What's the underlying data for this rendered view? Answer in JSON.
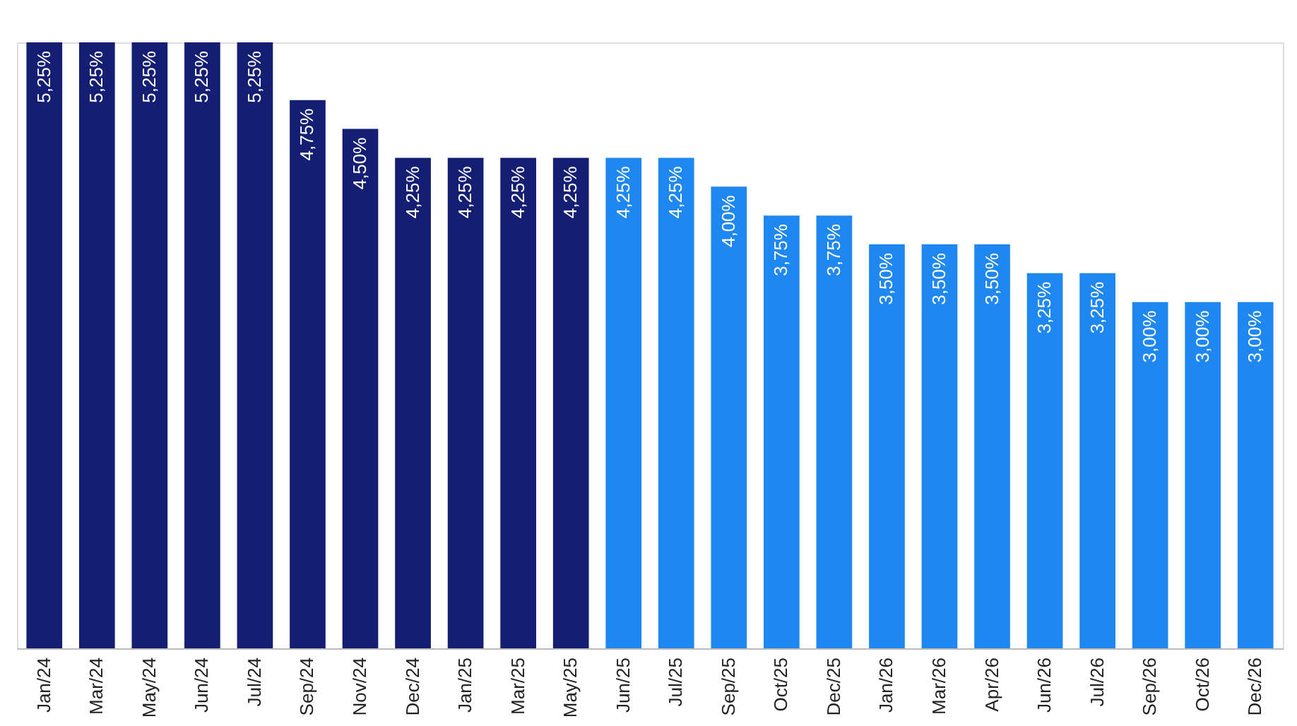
{
  "chart_data": {
    "type": "bar",
    "categories": [
      "Jan/24",
      "Mar/24",
      "May/24",
      "Jun/24",
      "Jul/24",
      "Sep/24",
      "Nov/24",
      "Dec/24",
      "Jan/25",
      "Mar/25",
      "May/25",
      "Jun/25",
      "Jul/25",
      "Sep/25",
      "Oct/25",
      "Dec/25",
      "Jan/26",
      "Mar/26",
      "Apr/26",
      "Jun/26",
      "Jul/26",
      "Sep/26",
      "Oct/26",
      "Dec/26"
    ],
    "values": [
      5.25,
      5.25,
      5.25,
      5.25,
      5.25,
      4.75,
      4.5,
      4.25,
      4.25,
      4.25,
      4.25,
      4.25,
      4.25,
      4.0,
      3.75,
      3.75,
      3.5,
      3.5,
      3.5,
      3.25,
      3.25,
      3.0,
      3.0,
      3.0
    ],
    "value_labels": [
      "5,25%",
      "5,25%",
      "5,25%",
      "5,25%",
      "5,25%",
      "4,75%",
      "4,50%",
      "4,25%",
      "4,25%",
      "4,25%",
      "4,25%",
      "4,25%",
      "4,25%",
      "4,00%",
      "3,75%",
      "3,75%",
      "3,50%",
      "3,50%",
      "3,50%",
      "3,25%",
      "3,25%",
      "3,00%",
      "3,00%",
      "3,00%"
    ],
    "colors": [
      "#141f73",
      "#141f73",
      "#141f73",
      "#141f73",
      "#141f73",
      "#141f73",
      "#141f73",
      "#141f73",
      "#141f73",
      "#141f73",
      "#141f73",
      "#1f87f0",
      "#1f87f0",
      "#1f87f0",
      "#1f87f0",
      "#1f87f0",
      "#1f87f0",
      "#1f87f0",
      "#1f87f0",
      "#1f87f0",
      "#1f87f0",
      "#1f87f0",
      "#1f87f0",
      "#1f87f0"
    ],
    "grid": false,
    "legend": false
  }
}
